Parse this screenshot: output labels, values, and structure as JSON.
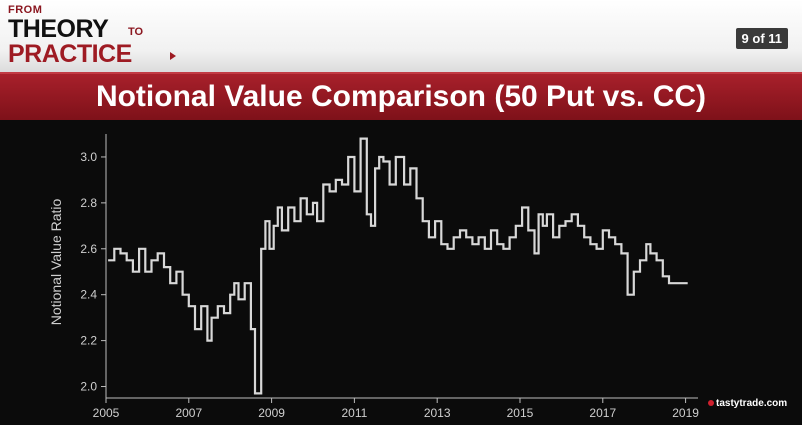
{
  "header": {
    "logo_from": "FROM",
    "logo_theory": "THEORY",
    "logo_to": "TO",
    "logo_practice": "PRACTICE",
    "page_indicator": "9 of 11"
  },
  "banner": {
    "title": "Notional Value Comparison (50 Put vs. CC)"
  },
  "brand": {
    "name": "tastytrade",
    "suffix": ".com"
  },
  "colors": {
    "line": "#d8d8d8",
    "banner": "#9e1b23",
    "axis": "#bdbdbd"
  },
  "chart_data": {
    "type": "line",
    "title": "",
    "xlabel": "",
    "ylabel": "Notional Value Ratio",
    "xlim": [
      2005,
      2019.3
    ],
    "ylim": [
      1.95,
      3.1
    ],
    "xticks": [
      2005,
      2007,
      2009,
      2011,
      2013,
      2015,
      2017,
      2019
    ],
    "yticks": [
      2.0,
      2.2,
      2.4,
      2.6,
      2.8,
      3.0
    ],
    "grid": false,
    "step": true,
    "series": [
      {
        "x": [
          2005.05,
          2005.2,
          2005.35,
          2005.5,
          2005.65,
          2005.8,
          2005.95,
          2006.1,
          2006.25,
          2006.4,
          2006.55,
          2006.7,
          2006.85,
          2007.0,
          2007.15,
          2007.3,
          2007.45,
          2007.55,
          2007.7,
          2007.85,
          2008.0,
          2008.1,
          2008.2,
          2008.35,
          2008.5,
          2008.6,
          2008.75,
          2008.85,
          2008.95,
          2009.05,
          2009.15,
          2009.25,
          2009.4,
          2009.55,
          2009.7,
          2009.85,
          2010.0,
          2010.1,
          2010.25,
          2010.4,
          2010.55,
          2010.7,
          2010.85,
          2011.0,
          2011.15,
          2011.3,
          2011.4,
          2011.5,
          2011.6,
          2011.7,
          2011.85,
          2012.0,
          2012.2,
          2012.35,
          2012.5,
          2012.65,
          2012.8,
          2012.95,
          2013.1,
          2013.25,
          2013.4,
          2013.55,
          2013.7,
          2013.85,
          2014.0,
          2014.15,
          2014.3,
          2014.45,
          2014.6,
          2014.75,
          2014.9,
          2015.05,
          2015.2,
          2015.35,
          2015.45,
          2015.55,
          2015.65,
          2015.8,
          2015.95,
          2016.1,
          2016.25,
          2016.4,
          2016.55,
          2016.7,
          2016.85,
          2017.0,
          2017.15,
          2017.3,
          2017.45,
          2017.6,
          2017.75,
          2017.9,
          2018.05,
          2018.15,
          2018.3,
          2018.45,
          2018.6,
          2018.75,
          2018.85,
          2018.95,
          2019.05
        ],
        "y": [
          2.55,
          2.6,
          2.58,
          2.55,
          2.5,
          2.6,
          2.5,
          2.55,
          2.58,
          2.52,
          2.45,
          2.5,
          2.4,
          2.35,
          2.25,
          2.35,
          2.2,
          2.3,
          2.35,
          2.32,
          2.4,
          2.45,
          2.38,
          2.45,
          2.25,
          1.97,
          2.6,
          2.72,
          2.6,
          2.7,
          2.78,
          2.68,
          2.78,
          2.72,
          2.82,
          2.75,
          2.8,
          2.72,
          2.88,
          2.85,
          2.9,
          2.88,
          3.0,
          2.85,
          3.08,
          2.75,
          2.7,
          2.95,
          3.0,
          2.98,
          2.88,
          3.0,
          2.88,
          2.95,
          2.82,
          2.72,
          2.65,
          2.72,
          2.62,
          2.6,
          2.65,
          2.68,
          2.65,
          2.62,
          2.65,
          2.6,
          2.68,
          2.62,
          2.6,
          2.65,
          2.7,
          2.78,
          2.68,
          2.58,
          2.75,
          2.7,
          2.75,
          2.65,
          2.7,
          2.72,
          2.75,
          2.7,
          2.65,
          2.62,
          2.6,
          2.68,
          2.65,
          2.62,
          2.58,
          2.4,
          2.5,
          2.55,
          2.62,
          2.58,
          2.55,
          2.48,
          2.45,
          2.45,
          2.45,
          2.45,
          2.45
        ]
      }
    ]
  }
}
